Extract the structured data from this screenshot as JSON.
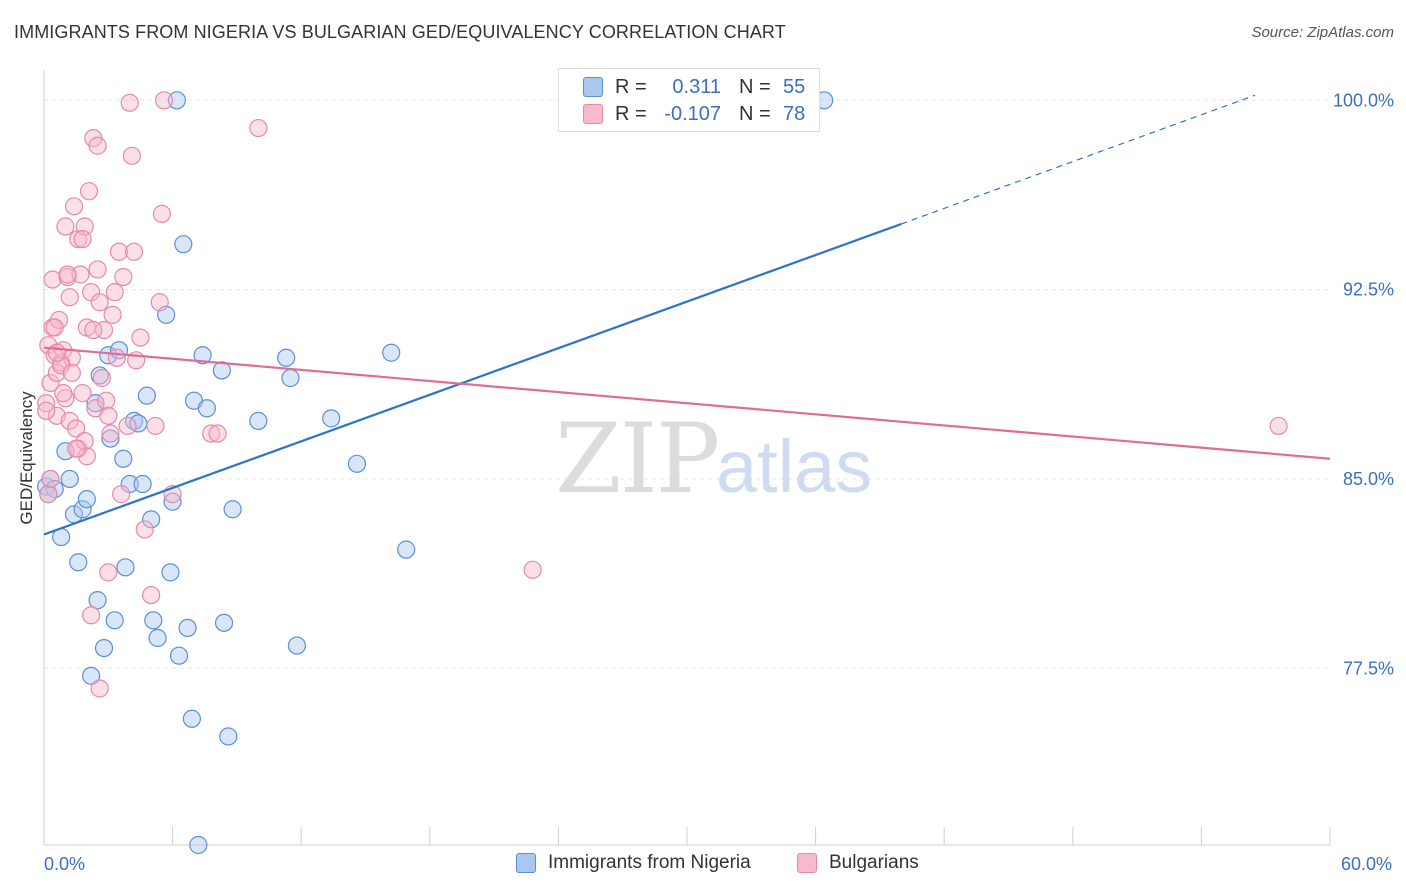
{
  "title": "IMMIGRANTS FROM NIGERIA VS BULGARIAN GED/EQUIVALENCY CORRELATION CHART",
  "source": "Source: ZipAtlas.com",
  "colors": {
    "blue_fill": "#aac8ef",
    "blue_stroke": "#5b8fd6",
    "blue_line": "#2f73c9",
    "pink_fill": "#f7b9cd",
    "pink_stroke": "#e58aa8",
    "pink_line": "#e06b97",
    "tick_label": "#3a6fc4",
    "grid": "#e4e4e4"
  },
  "legend": {
    "rows": [
      {
        "r_label": "R =",
        "r_value": "0.311",
        "n_label": "N =",
        "n_value": "55"
      },
      {
        "r_label": "R =",
        "r_value": "-0.107",
        "n_label": "N =",
        "n_value": "78"
      }
    ]
  },
  "chart_data": {
    "type": "scatter",
    "title": "IMMIGRANTS FROM NIGERIA VS BULGARIAN GED/EQUIVALENCY CORRELATION CHART",
    "xlabel": "",
    "ylabel": "GED/Equivalency",
    "xlim": [
      0,
      60
    ],
    "ylim": [
      70.5,
      101.2
    ],
    "x_tick_labels": [
      "0.0%",
      "60.0%"
    ],
    "y_ticks": [
      77.5,
      85.0,
      92.5,
      100.0
    ],
    "y_tick_labels": [
      "77.5%",
      "85.0%",
      "92.5%",
      "100.0%"
    ],
    "watermark": {
      "zip": "ZIP",
      "atlas": "atlas"
    },
    "series": [
      {
        "name": "Immigrants from Nigeria",
        "points": [
          [
            0.1,
            84.7
          ],
          [
            0.3,
            85.0
          ],
          [
            0.5,
            84.6
          ],
          [
            0.8,
            82.7
          ],
          [
            1.0,
            86.1
          ],
          [
            1.2,
            85.0
          ],
          [
            1.4,
            83.6
          ],
          [
            1.6,
            81.7
          ],
          [
            1.8,
            83.8
          ],
          [
            2.0,
            84.2
          ],
          [
            2.2,
            77.2
          ],
          [
            2.4,
            88.0
          ],
          [
            2.5,
            80.2
          ],
          [
            2.6,
            89.1
          ],
          [
            2.8,
            78.3
          ],
          [
            3.0,
            89.9
          ],
          [
            3.1,
            86.6
          ],
          [
            3.3,
            79.4
          ],
          [
            3.5,
            90.1
          ],
          [
            3.7,
            85.8
          ],
          [
            3.8,
            81.5
          ],
          [
            4.0,
            84.8
          ],
          [
            4.2,
            87.3
          ],
          [
            4.4,
            87.2
          ],
          [
            4.6,
            84.8
          ],
          [
            4.8,
            88.3
          ],
          [
            5.0,
            83.4
          ],
          [
            5.1,
            79.4
          ],
          [
            5.3,
            78.7
          ],
          [
            5.7,
            91.5
          ],
          [
            5.9,
            81.3
          ],
          [
            6.0,
            84.1
          ],
          [
            6.2,
            100.0
          ],
          [
            6.3,
            78.0
          ],
          [
            6.5,
            94.3
          ],
          [
            6.7,
            79.1
          ],
          [
            6.9,
            75.5
          ],
          [
            7.0,
            88.1
          ],
          [
            7.2,
            70.5
          ],
          [
            7.4,
            89.9
          ],
          [
            7.6,
            87.8
          ],
          [
            8.3,
            89.3
          ],
          [
            8.4,
            79.3
          ],
          [
            8.6,
            74.8
          ],
          [
            8.8,
            83.8
          ],
          [
            10.0,
            87.3
          ],
          [
            11.3,
            89.8
          ],
          [
            11.5,
            89.0
          ],
          [
            11.8,
            78.4
          ],
          [
            13.4,
            87.4
          ],
          [
            14.6,
            85.6
          ],
          [
            16.2,
            90.0
          ],
          [
            16.9,
            82.2
          ],
          [
            36.4,
            100.0
          ],
          [
            0.2,
            84.4
          ]
        ]
      },
      {
        "name": "Bulgarians",
        "points": [
          [
            0.1,
            88.0
          ],
          [
            0.2,
            90.3
          ],
          [
            0.3,
            88.8
          ],
          [
            0.4,
            91.0
          ],
          [
            0.4,
            92.9
          ],
          [
            0.5,
            89.9
          ],
          [
            0.6,
            87.5
          ],
          [
            0.6,
            89.2
          ],
          [
            0.7,
            91.3
          ],
          [
            0.8,
            89.6
          ],
          [
            0.9,
            90.1
          ],
          [
            1.0,
            88.2
          ],
          [
            1.0,
            95.0
          ],
          [
            1.1,
            93.0
          ],
          [
            1.2,
            92.2
          ],
          [
            1.2,
            87.3
          ],
          [
            1.3,
            89.8
          ],
          [
            1.4,
            95.8
          ],
          [
            1.5,
            87.0
          ],
          [
            1.6,
            94.5
          ],
          [
            1.6,
            86.2
          ],
          [
            1.7,
            93.1
          ],
          [
            1.8,
            88.4
          ],
          [
            1.9,
            95.0
          ],
          [
            2.0,
            85.9
          ],
          [
            2.0,
            91.0
          ],
          [
            2.1,
            96.4
          ],
          [
            2.2,
            92.4
          ],
          [
            2.3,
            98.5
          ],
          [
            2.4,
            87.8
          ],
          [
            2.5,
            98.2
          ],
          [
            2.5,
            93.3
          ],
          [
            2.6,
            92.0
          ],
          [
            2.7,
            89.0
          ],
          [
            2.8,
            90.9
          ],
          [
            2.9,
            88.1
          ],
          [
            3.0,
            87.5
          ],
          [
            3.0,
            81.3
          ],
          [
            3.2,
            91.5
          ],
          [
            3.3,
            92.4
          ],
          [
            3.4,
            89.8
          ],
          [
            3.5,
            94.0
          ],
          [
            3.6,
            84.4
          ],
          [
            3.7,
            93.0
          ],
          [
            3.9,
            87.1
          ],
          [
            4.0,
            99.9
          ],
          [
            4.1,
            97.8
          ],
          [
            4.3,
            89.7
          ],
          [
            4.5,
            90.6
          ],
          [
            4.7,
            83.0
          ],
          [
            5.0,
            80.4
          ],
          [
            5.2,
            87.1
          ],
          [
            5.4,
            92.0
          ],
          [
            5.5,
            95.5
          ],
          [
            5.6,
            100.0
          ],
          [
            6.0,
            84.4
          ],
          [
            7.8,
            86.8
          ],
          [
            8.1,
            86.8
          ],
          [
            10.0,
            98.9
          ],
          [
            22.8,
            81.4
          ],
          [
            57.6,
            87.1
          ],
          [
            0.2,
            84.4
          ],
          [
            0.3,
            85.0
          ],
          [
            1.9,
            86.5
          ],
          [
            2.2,
            79.6
          ],
          [
            2.6,
            76.7
          ],
          [
            3.1,
            86.8
          ],
          [
            4.2,
            94.0
          ],
          [
            0.5,
            91.0
          ],
          [
            0.8,
            89.5
          ],
          [
            1.1,
            93.1
          ],
          [
            1.5,
            86.2
          ],
          [
            1.8,
            94.5
          ],
          [
            2.3,
            90.9
          ],
          [
            0.1,
            87.7
          ],
          [
            0.6,
            90.0
          ],
          [
            0.9,
            88.4
          ],
          [
            1.3,
            89.2
          ]
        ]
      }
    ],
    "trendlines": [
      {
        "series": "Immigrants from Nigeria",
        "x_start": 0,
        "y_start": 82.8,
        "x_end": 40.0,
        "y_end": 95.1,
        "dashed_x_end": 56.5,
        "dashed_y_end": 100.2
      },
      {
        "series": "Bulgarians",
        "x_start": 0,
        "y_start": 90.2,
        "x_end": 60.0,
        "y_end": 85.8
      }
    ],
    "legend_position": "top-center"
  }
}
